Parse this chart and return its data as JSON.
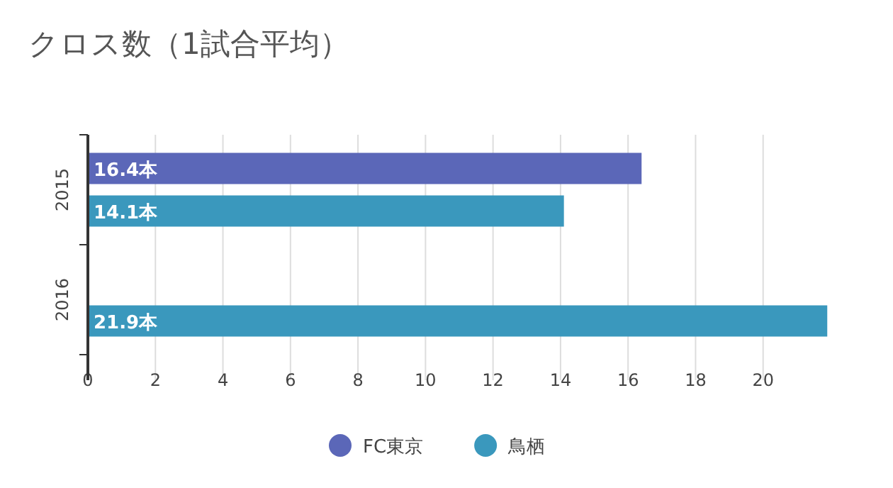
{
  "chart_data": {
    "type": "bar",
    "orientation": "horizontal",
    "title": "クロス数（1試合平均）",
    "categories": [
      "2015",
      "2016"
    ],
    "series": [
      {
        "name": "FC東京",
        "color": "#5b67b8",
        "values": [
          16.4,
          null
        ],
        "value_labels": [
          "16.4本",
          null
        ]
      },
      {
        "name": "鳥栖",
        "color": "#3a98bd",
        "values": [
          14.1,
          21.9
        ],
        "value_labels": [
          "14.1本",
          "21.9本"
        ]
      }
    ],
    "xlim": [
      0,
      22
    ],
    "xticks": [
      0,
      2,
      4,
      6,
      8,
      10,
      12,
      14,
      16,
      18,
      20
    ],
    "grid": "x",
    "legend": "bottom"
  }
}
